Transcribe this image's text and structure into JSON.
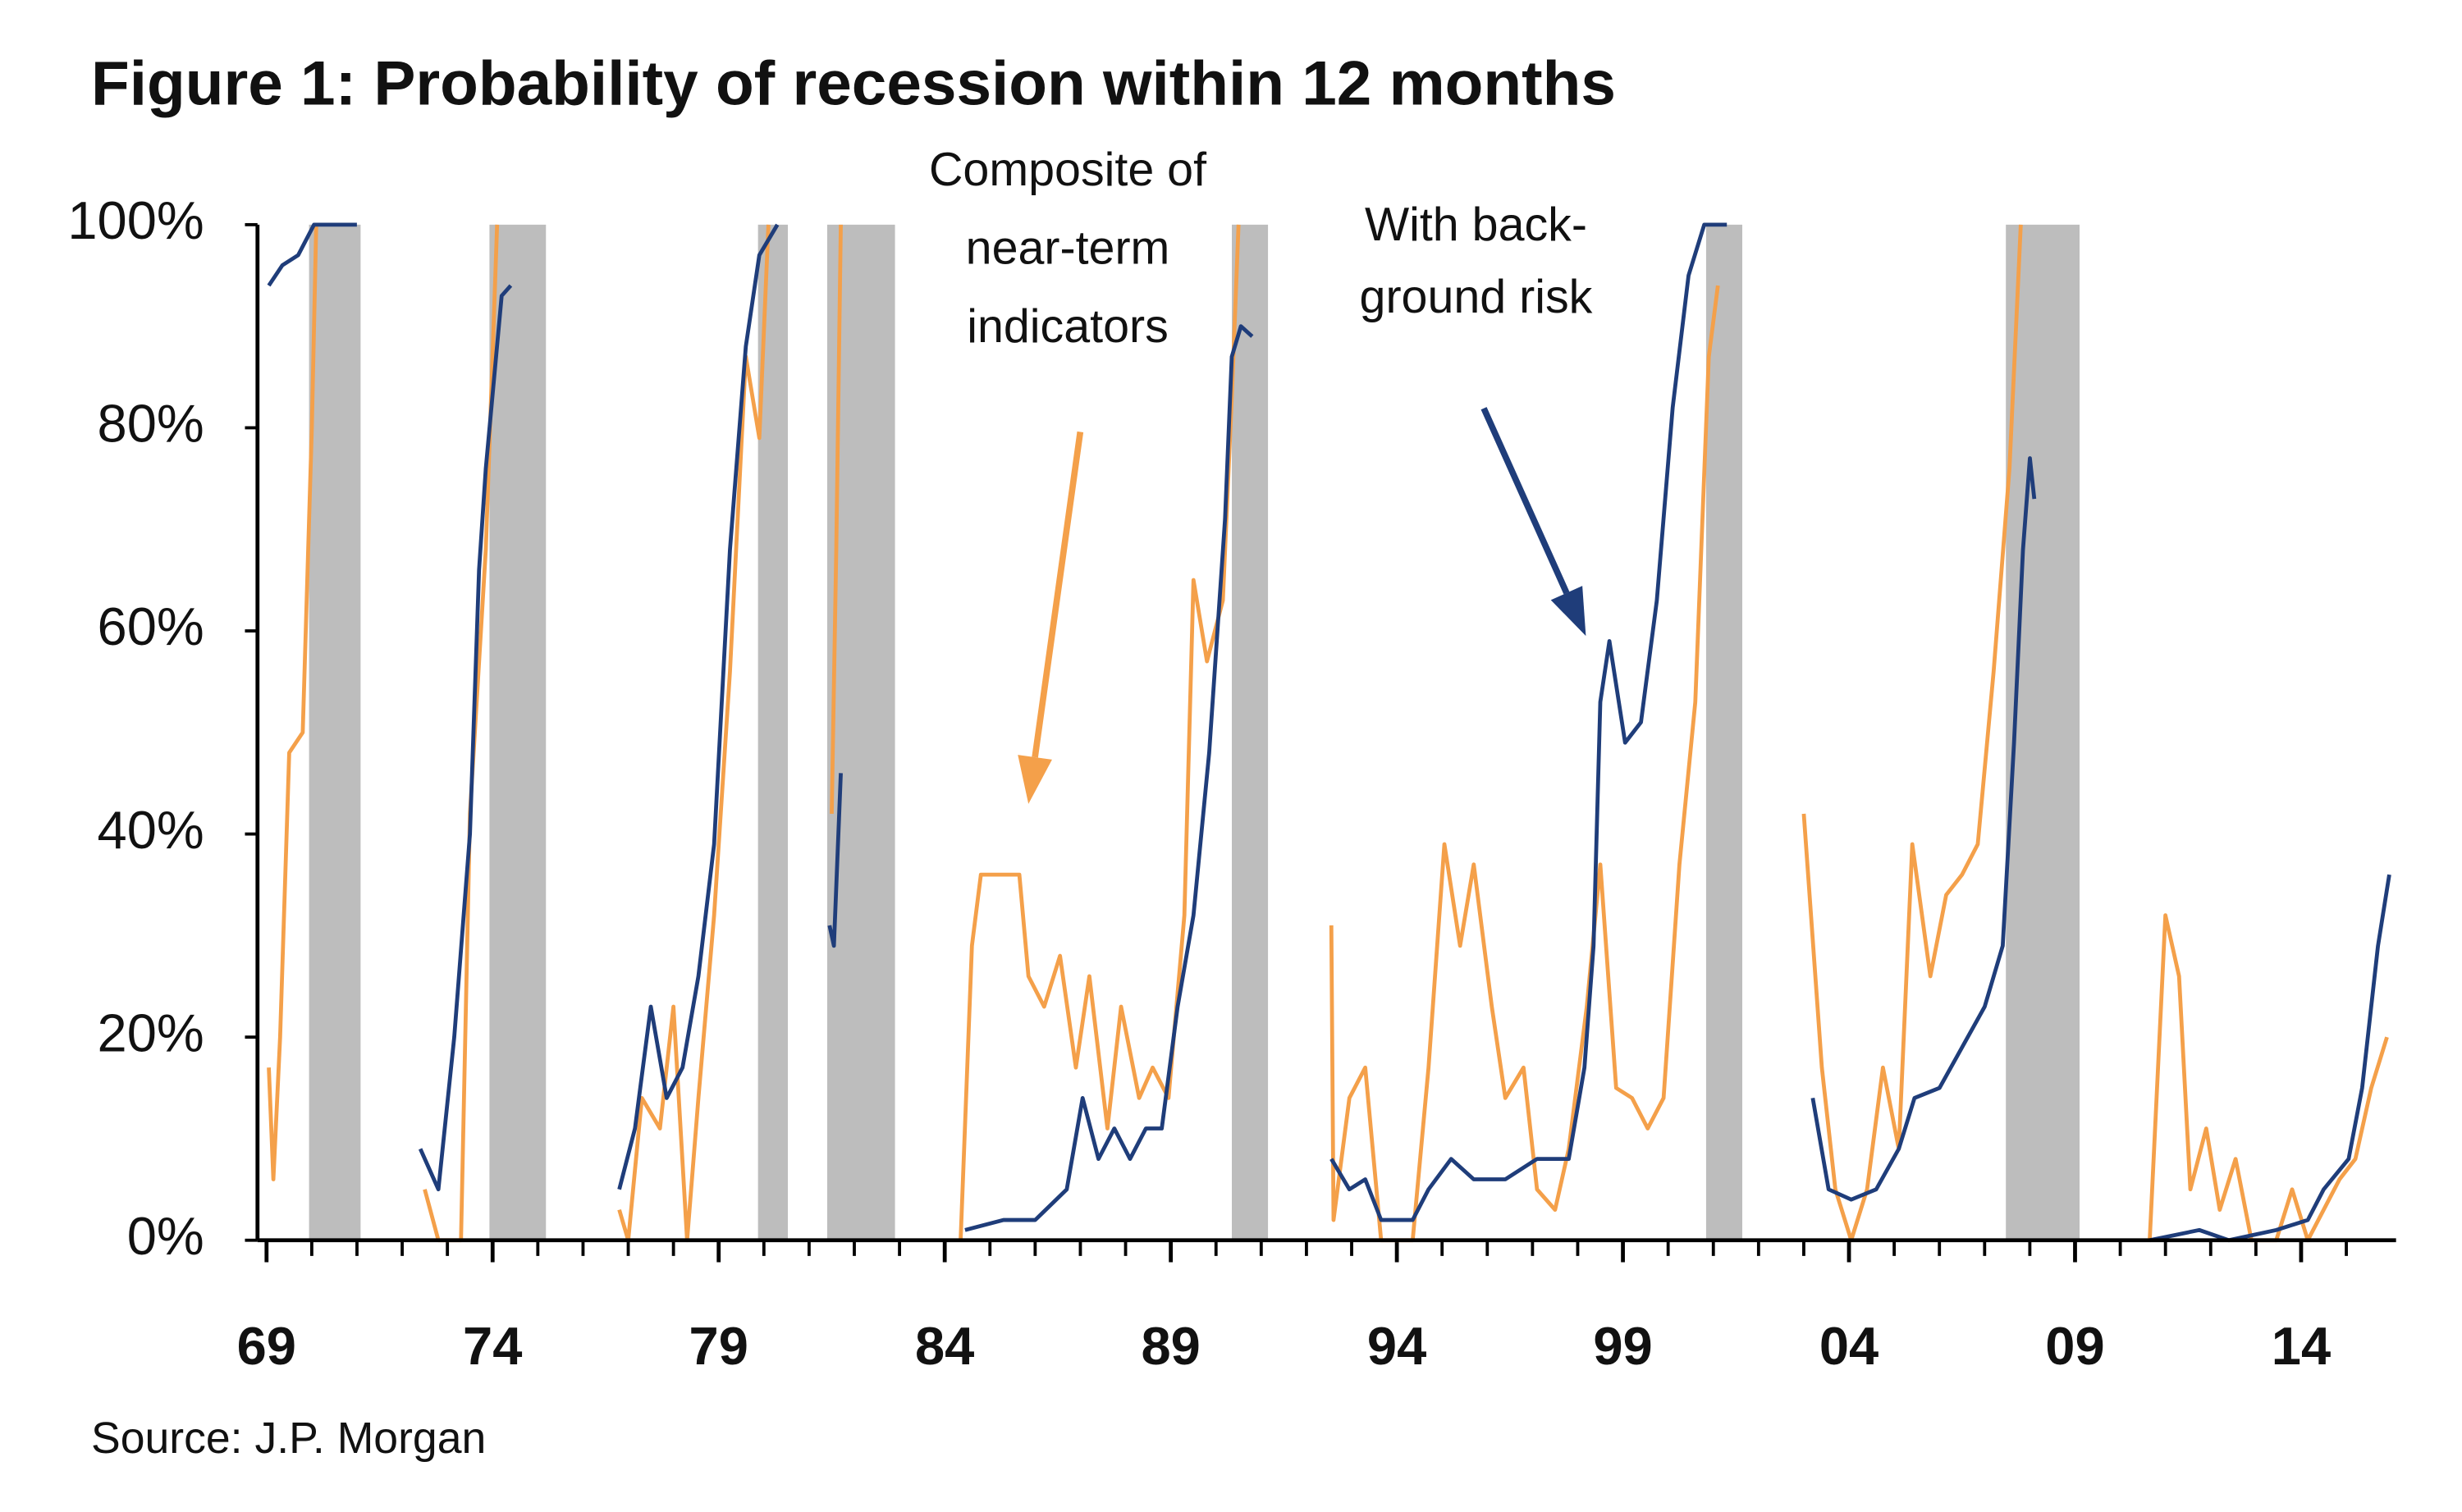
{
  "chart_data": {
    "type": "line",
    "title": "Figure 1: Probability of recession  within 12 months",
    "source": "Source: J.P. Morgan",
    "xlim": [
      1968.8,
      2016.1
    ],
    "ylim": [
      0,
      100
    ],
    "yticks": [
      {
        "value": 0,
        "label": "0%"
      },
      {
        "value": 20,
        "label": "20%"
      },
      {
        "value": 40,
        "label": "40%"
      },
      {
        "value": 60,
        "label": "60%"
      },
      {
        "value": 80,
        "label": "80%"
      },
      {
        "value": 100,
        "label": "100%"
      }
    ],
    "xticks": [
      {
        "value": 1969,
        "label": "69"
      },
      {
        "value": 1974,
        "label": "74"
      },
      {
        "value": 1979,
        "label": "79"
      },
      {
        "value": 1984,
        "label": "84"
      },
      {
        "value": 1989,
        "label": "89"
      },
      {
        "value": 1994,
        "label": "94"
      },
      {
        "value": 1999,
        "label": "99"
      },
      {
        "value": 2004,
        "label": "04"
      },
      {
        "value": 2009,
        "label": "09"
      },
      {
        "value": 2014,
        "label": "14"
      }
    ],
    "xminorticks": [
      1969,
      1970,
      1971,
      1972,
      1973,
      1974,
      1975,
      1976,
      1977,
      1978,
      1979,
      1980,
      1981,
      1982,
      1983,
      1984,
      1985,
      1986,
      1987,
      1988,
      1989,
      1990,
      1991,
      1992,
      1993,
      1994,
      1995,
      1996,
      1997,
      1998,
      1999,
      2000,
      2001,
      2002,
      2003,
      2004,
      2005,
      2006,
      2007,
      2008,
      2009,
      2010,
      2011,
      2012,
      2013,
      2014,
      2015
    ],
    "recessions": [
      [
        1969.94,
        1971.08
      ],
      [
        1973.93,
        1975.18
      ],
      [
        1979.87,
        1980.53
      ],
      [
        1981.4,
        1982.9
      ],
      [
        1990.35,
        1991.15
      ],
      [
        2000.84,
        2001.64
      ],
      [
        2007.47,
        2009.1
      ]
    ],
    "recession_color": "#bdbdbd",
    "series": [
      {
        "color": "#f4a04a",
        "x": [
          1969.05,
          1969.15,
          1969.3,
          1969.5,
          1969.8,
          1970.0,
          1970.1,
          null,
          1972.5,
          1972.8,
          1973.3,
          1973.5,
          1973.85,
          1974.1,
          null,
          1976.8,
          1977.0,
          1977.3,
          1977.7,
          1978.0,
          1978.3,
          1978.55,
          1978.9,
          1979.25,
          1979.6,
          1979.9,
          1980.1,
          null,
          1981.5,
          1981.6,
          1981.7,
          null,
          1984.35,
          1984.6,
          1984.8,
          1985.3,
          1985.65,
          1985.85,
          1986.2,
          1986.55,
          1986.9,
          1987.2,
          1987.6,
          1987.9,
          1988.3,
          1988.6,
          1988.95,
          1989.3,
          1989.5,
          1989.8,
          1990.15,
          1990.35,
          1990.5,
          null,
          1992.55,
          1992.6,
          1992.95,
          1993.3,
          1993.65,
          1994.35,
          1994.7,
          1995.05,
          1995.4,
          1995.7,
          1996.1,
          1996.4,
          1996.8,
          1997.1,
          1997.5,
          1997.8,
          1998.2,
          1998.5,
          1998.85,
          1999.2,
          1999.55,
          1999.9,
          2000.25,
          2000.6,
          2000.9,
          2001.1,
          null,
          2003.0,
          2003.4,
          2003.7,
          2004.05,
          2004.4,
          2004.75,
          2005.1,
          2005.4,
          2005.8,
          2006.15,
          2006.5,
          2006.85,
          2007.2,
          2007.55,
          2007.8,
          null,
          2010.65,
          2011.0,
          2011.3,
          2011.55,
          2011.9,
          2012.2,
          2012.55,
          2012.9,
          2013.45,
          2013.8,
          2014.15,
          2014.5,
          2014.85,
          2015.2,
          2015.55,
          2015.9
        ],
        "values": [
          17,
          6,
          20,
          48,
          50,
          80,
          100,
          null,
          5,
          0,
          0,
          42,
          68,
          100,
          null,
          3,
          0,
          14,
          11,
          23,
          0,
          14,
          32,
          56,
          87,
          79,
          100,
          null,
          42,
          68,
          100,
          null,
          0,
          29,
          36,
          36,
          36,
          26,
          23,
          28,
          17,
          26,
          11,
          23,
          14,
          17,
          14,
          32,
          65,
          57,
          63,
          83,
          100,
          null,
          31,
          2,
          14,
          17,
          0,
          0,
          17,
          39,
          29,
          37,
          23,
          14,
          17,
          5,
          3,
          9,
          23,
          37,
          15,
          14,
          11,
          14,
          37,
          53,
          87,
          94,
          null,
          42,
          17,
          5,
          0,
          5,
          17,
          9,
          39,
          26,
          34,
          36,
          39,
          56,
          76,
          100,
          null,
          0,
          32,
          26,
          5,
          11,
          3,
          8,
          0,
          0,
          5,
          0,
          3,
          6,
          8,
          15,
          20
        ]
      },
      {
        "color": "#1f3d7a",
        "x": [
          1969.05,
          1969.35,
          1969.7,
          1970.05,
          1971.0,
          null,
          1972.4,
          1972.8,
          1973.15,
          1973.5,
          1973.7,
          1973.85,
          1974.2,
          1974.4,
          null,
          1976.8,
          1977.15,
          1977.5,
          1977.85,
          1978.2,
          1978.55,
          1978.9,
          1979.25,
          1979.6,
          1979.9,
          1980.3,
          null,
          1981.45,
          1981.55,
          1981.7,
          null,
          1984.45,
          1985.3,
          1986.0,
          1986.7,
          1987.05,
          1987.4,
          1987.75,
          1988.1,
          1988.45,
          1988.8,
          1989.15,
          1989.5,
          1989.85,
          1990.2,
          1990.35,
          1990.55,
          1990.8,
          null,
          1992.55,
          1992.95,
          1993.3,
          1993.65,
          1994.35,
          1994.7,
          1995.2,
          1995.7,
          1996.4,
          1997.1,
          1997.8,
          1998.15,
          1998.35,
          1998.5,
          1998.7,
          1999.05,
          1999.4,
          1999.75,
          2000.1,
          2000.45,
          2000.8,
          2001.3,
          null,
          2003.2,
          2003.55,
          2004.05,
          2004.6,
          2005.1,
          2005.45,
          2006.0,
          2006.5,
          2007.0,
          2007.4,
          2007.65,
          2007.85,
          2008.0,
          2008.1,
          null,
          2010.65,
          2011.75,
          2012.4,
          2013.45,
          2014.15,
          2014.5,
          2015.05,
          2015.35,
          2015.7,
          2015.95
        ],
        "values": [
          94,
          96,
          97,
          100,
          100,
          null,
          9,
          5,
          20,
          40,
          66,
          76,
          93,
          94,
          null,
          5,
          11,
          23,
          14,
          17,
          26,
          39,
          68,
          88,
          97,
          100,
          null,
          31,
          29,
          46,
          null,
          1,
          2,
          2,
          5,
          14,
          8,
          11,
          8,
          11,
          11,
          23,
          32,
          48,
          71,
          87,
          90,
          89,
          null,
          8,
          5,
          6,
          2,
          2,
          5,
          8,
          6,
          6,
          8,
          8,
          17,
          29,
          53,
          59,
          49,
          51,
          63,
          82,
          95,
          100,
          100,
          null,
          14,
          5,
          4,
          5,
          9,
          14,
          15,
          19,
          23,
          29,
          49,
          68,
          77,
          73,
          null,
          0,
          1,
          0,
          1,
          2,
          5,
          8,
          15,
          29,
          36
        ]
      }
    ],
    "annotations": [
      {
        "lines": [
          "Composite of",
          "near-term",
          "indicators"
        ]
      },
      {
        "lines": [
          "With back-",
          "ground risk"
        ]
      }
    ]
  }
}
